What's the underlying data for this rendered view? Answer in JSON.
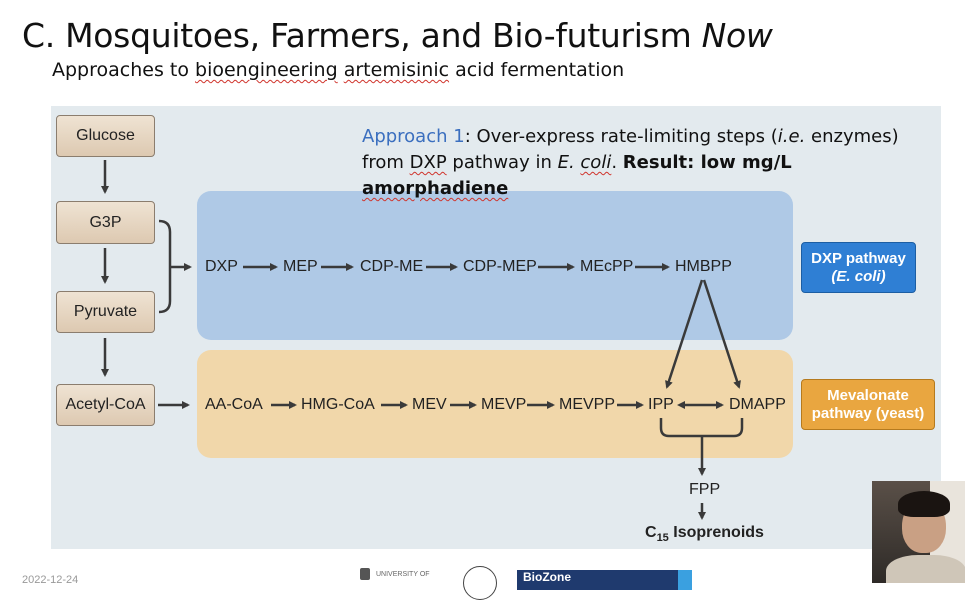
{
  "slide": {
    "title_main": "C. Mosquitoes, Farmers, and Bio-futurism ",
    "title_italic": "Now",
    "subtitle_pre": "Approaches to ",
    "subtitle_w1": "bioengineering",
    "subtitle_w2": "artemisinic",
    "subtitle_post": " acid fermentation"
  },
  "approach": {
    "label": "Approach 1",
    "text_a": ": Over-express rate-limiting steps (",
    "ie": "i.e.",
    "text_b": " enzymes) from ",
    "dxp": "DXP",
    "text_c": " pathway in ",
    "ecoli_e": "E. ",
    "ecoli_coli": "coli",
    "dot": ". ",
    "result_pre": "Result: low mg/L ",
    "result_word": "amorphadiene"
  },
  "nodes": {
    "glucose": "Glucose",
    "g3p": "G3P",
    "pyruvate": "Pyruvate",
    "acetyl_coa": "Acetyl-CoA"
  },
  "dxp_pathway": [
    "DXP",
    "MEP",
    "CDP-ME",
    "CDP-MEP",
    "MEcPP",
    "HMBPP"
  ],
  "mev_pathway": [
    "AA-CoA",
    "HMG-CoA",
    "MEV",
    "MEVP",
    "MEVPP",
    "IPP",
    "DMAPP"
  ],
  "products": {
    "fpp": "FPP",
    "c15_c": "C",
    "c15_sub": "15",
    "c15_rest": " Isoprenoids"
  },
  "badges": {
    "dxp_line1": "DXP pathway",
    "dxp_line2": "(E. coli)",
    "mev_line1": "Mevalonate",
    "mev_line2": "pathway (yeast)"
  },
  "colors": {
    "dxp_region": "#afc9e6",
    "mev_region": "#f1d7aa",
    "dxp_badge": "#2f7fd4",
    "mev_badge": "#e9a640",
    "approach_highlight": "#3b6fbf"
  },
  "footer": {
    "date": "2022-12-24",
    "logo_text": "UNIVERSITY OF",
    "biozone": "BioZone"
  }
}
